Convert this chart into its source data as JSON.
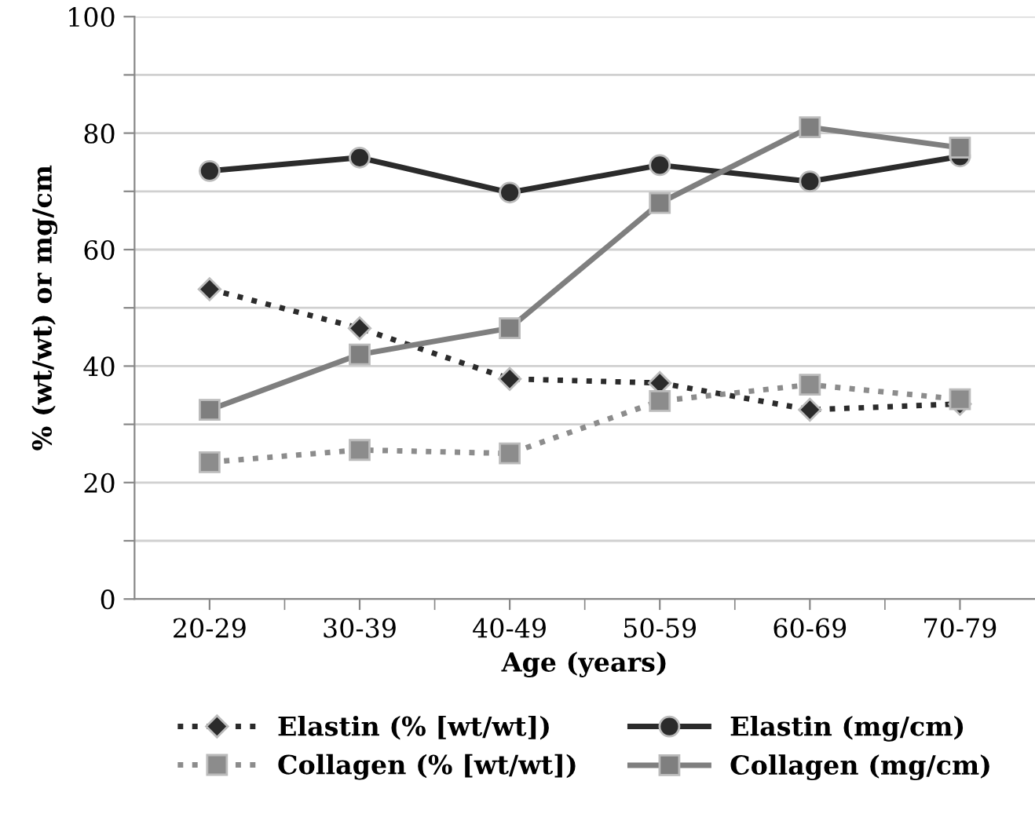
{
  "chart_data": {
    "type": "line",
    "xlabel": "Age (years)",
    "ylabel": "% (wt/wt) or mg/cm",
    "categories": [
      "20-29",
      "30-39",
      "40-49",
      "50-59",
      "60-69",
      "70-79"
    ],
    "series": [
      {
        "name": "Elastin (% [wt/wt])",
        "color": "#2b2b2b",
        "marker": "diamond",
        "line_style": "dotted",
        "values": [
          53.2,
          46.5,
          37.8,
          37.1,
          32.5,
          33.5
        ]
      },
      {
        "name": "Collagen (% [wt/wt])",
        "color": "#8c8c8c",
        "marker": "square",
        "line_style": "dotted",
        "values": [
          23.5,
          25.6,
          25.0,
          34.0,
          36.8,
          34.3
        ]
      },
      {
        "name": "Elastin (mg/cm)",
        "color": "#2b2b2b",
        "marker": "circle",
        "line_style": "solid",
        "values": [
          73.5,
          75.8,
          69.8,
          74.5,
          71.7,
          76.0
        ]
      },
      {
        "name": "Collagen (mg/cm)",
        "color": "#7f7f7f",
        "marker": "square",
        "line_style": "solid",
        "values": [
          32.5,
          42.0,
          46.5,
          68.0,
          81.0,
          77.5
        ]
      }
    ],
    "ylim": [
      0,
      100
    ],
    "yticks": [
      0,
      {
        "value": 10,
        "label": null
      },
      20,
      {
        "value": 30,
        "label": null
      },
      40,
      {
        "value": 50,
        "label": null
      },
      60,
      {
        "value": 70,
        "label": null
      },
      80,
      {
        "value": 90,
        "label": null
      },
      100
    ],
    "grid": "y",
    "legend": "bottom"
  }
}
